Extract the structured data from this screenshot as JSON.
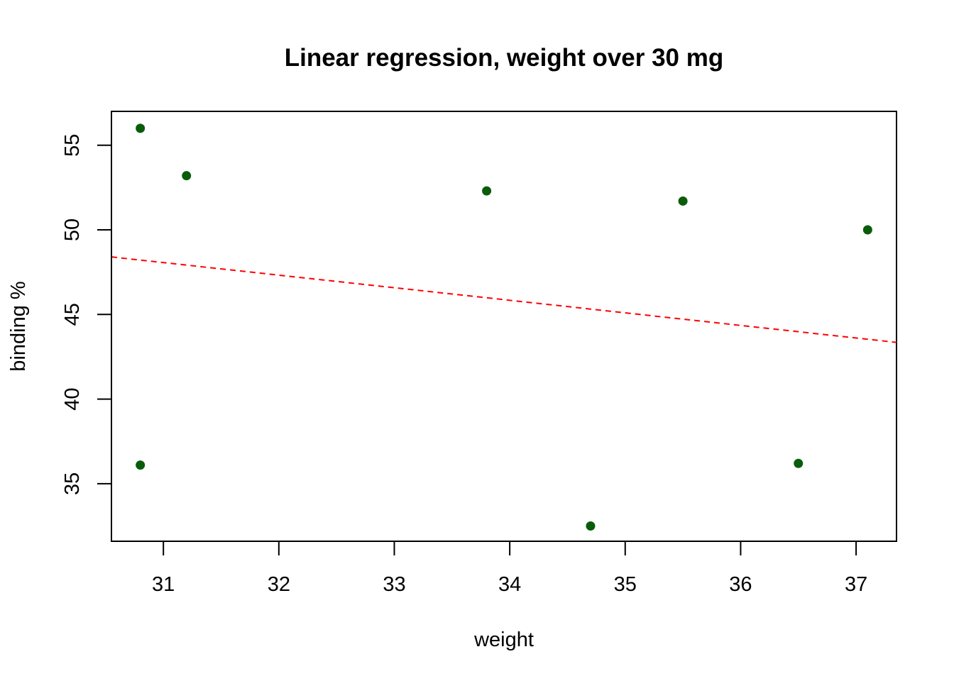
{
  "chart_data": {
    "type": "scatter",
    "title": "Linear regression, weight over 30 mg",
    "xlabel": "weight",
    "ylabel": "binding %",
    "xlim": [
      30.55,
      37.35
    ],
    "ylim": [
      31.6,
      57.0
    ],
    "x_ticks": [
      31,
      32,
      33,
      34,
      35,
      36,
      37
    ],
    "y_ticks": [
      35,
      40,
      45,
      50,
      55
    ],
    "grid": false,
    "series": [
      {
        "points": [
          {
            "x": 30.8,
            "y": 56.0
          },
          {
            "x": 30.8,
            "y": 36.1
          },
          {
            "x": 31.2,
            "y": 53.2
          },
          {
            "x": 33.8,
            "y": 52.3
          },
          {
            "x": 34.7,
            "y": 32.5
          },
          {
            "x": 35.5,
            "y": 51.7
          },
          {
            "x": 36.5,
            "y": 36.2
          },
          {
            "x": 37.1,
            "y": 50.0
          }
        ],
        "color": "#0a5c0a"
      }
    ],
    "regression_line": {
      "x": [
        30.55,
        37.35
      ],
      "y": [
        48.4,
        43.35
      ],
      "color": "#ff0000",
      "style": "dashed"
    }
  }
}
